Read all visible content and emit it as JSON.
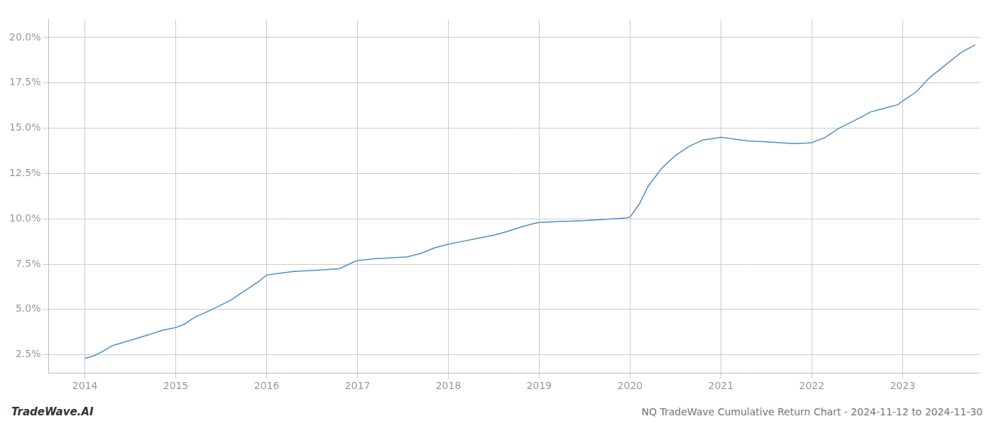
{
  "chart_data": {
    "type": "line",
    "title": "NQ TradeWave Cumulative Return Chart - 2024-11-12 to 2024-11-30",
    "annotations": [
      "TradeWave.AI"
    ],
    "color": "#4a90c4",
    "x": [
      2014.0,
      2014.1,
      2014.2,
      2014.3,
      2014.5,
      2014.7,
      2014.85,
      2015.0,
      2015.1,
      2015.2,
      2015.4,
      2015.6,
      2015.75,
      2015.9,
      2016.0,
      2016.15,
      2016.3,
      2016.5,
      2016.65,
      2016.8,
      2016.95,
      2017.0,
      2017.2,
      2017.4,
      2017.55,
      2017.7,
      2017.85,
      2018.0,
      2018.15,
      2018.3,
      2018.5,
      2018.65,
      2018.8,
      2018.95,
      2019.0,
      2019.1,
      2019.2,
      2019.35,
      2019.5,
      2019.65,
      2019.8,
      2019.95,
      2020.0,
      2020.1,
      2020.2,
      2020.35,
      2020.5,
      2020.65,
      2020.8,
      2020.95,
      2021.0,
      2021.15,
      2021.3,
      2021.5,
      2021.65,
      2021.8,
      2021.95,
      2022.0,
      2022.15,
      2022.3,
      2022.5,
      2022.65,
      2022.8,
      2022.95,
      2023.0,
      2023.15,
      2023.3,
      2023.5,
      2023.65,
      2023.8
    ],
    "values": [
      2.3,
      2.45,
      2.7,
      3.0,
      3.3,
      3.6,
      3.85,
      4.0,
      4.2,
      4.55,
      5.0,
      5.5,
      6.0,
      6.5,
      6.9,
      7.0,
      7.1,
      7.15,
      7.2,
      7.25,
      7.6,
      7.7,
      7.8,
      7.85,
      7.9,
      8.1,
      8.4,
      8.6,
      8.75,
      8.9,
      9.1,
      9.3,
      9.55,
      9.75,
      9.8,
      9.82,
      9.85,
      9.87,
      9.9,
      9.95,
      10.0,
      10.05,
      10.1,
      10.8,
      11.8,
      12.8,
      13.5,
      14.0,
      14.35,
      14.45,
      14.5,
      14.4,
      14.3,
      14.25,
      14.2,
      14.15,
      14.18,
      14.2,
      14.5,
      15.0,
      15.5,
      15.9,
      16.1,
      16.3,
      16.5,
      17.0,
      17.8,
      18.6,
      19.2,
      19.6
    ],
    "xlim": [
      2013.6,
      2023.85
    ],
    "ylim": [
      1.5,
      21.0
    ],
    "xticks": [
      2014,
      2015,
      2016,
      2017,
      2018,
      2019,
      2020,
      2021,
      2022,
      2023
    ],
    "yticks": [
      {
        "value": 2.5,
        "label": "2.5%"
      },
      {
        "value": 5.0,
        "label": "5.0%"
      },
      {
        "value": 7.5,
        "label": "7.5%"
      },
      {
        "value": 10.0,
        "label": "10.0%"
      },
      {
        "value": 12.5,
        "label": "12.5%"
      },
      {
        "value": 15.0,
        "label": "15.0%"
      },
      {
        "value": 17.5,
        "label": "17.5%"
      },
      {
        "value": 20.0,
        "label": "20.0%"
      }
    ],
    "grid": true
  }
}
